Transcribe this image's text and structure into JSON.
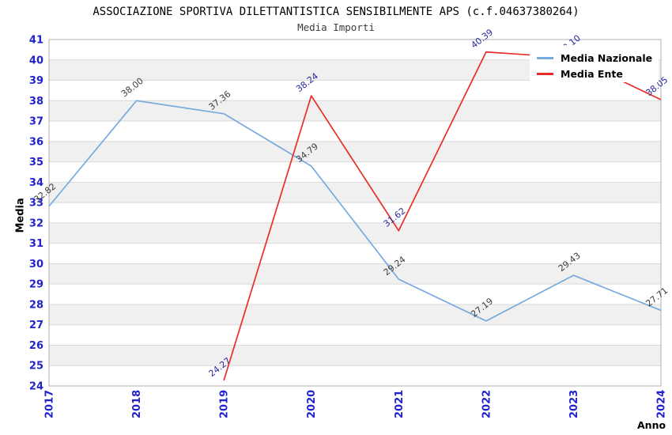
{
  "header": {
    "title": "ASSOCIAZIONE SPORTIVA DILETTANTISTICA SENSIBILMENTE APS (c.f.04637380264)",
    "subtitle": "Media Importi"
  },
  "chart_data": {
    "type": "line",
    "title": "ASSOCIAZIONE SPORTIVA DILETTANTISTICA SENSIBILMENTE APS (c.f.04637380264)",
    "subtitle": "Media Importi",
    "xlabel": "Anno",
    "ylabel": "Media",
    "x_categories": [
      "2017",
      "2018",
      "2019",
      "2020",
      "2021",
      "2022",
      "2023",
      "2024"
    ],
    "ylim": [
      24,
      41
    ],
    "y_tick_step": 1,
    "grid": "horizontal-bands",
    "legend_position": "top-right",
    "series": [
      {
        "name": "Media Nazionale",
        "color": "#76AADF",
        "label_color": "#3C3C3C",
        "x": [
          "2017",
          "2018",
          "2019",
          "2020",
          "2021",
          "2022",
          "2023",
          "2024"
        ],
        "values": [
          32.82,
          38.0,
          37.36,
          34.79,
          29.24,
          27.19,
          29.43,
          27.71
        ],
        "labels": [
          "32.82",
          "38.00",
          "37.36",
          "34.79",
          "29.24",
          "27.19",
          "29.43",
          "27.71"
        ]
      },
      {
        "name": "Media Ente",
        "color": "#E82D28",
        "label_color": "#2A2A9C",
        "x": [
          "2019",
          "2020",
          "2021",
          "2022",
          "2023",
          "2024"
        ],
        "values": [
          24.27,
          38.24,
          31.62,
          40.39,
          40.1,
          38.05
        ],
        "labels": [
          "24.27",
          "38.24",
          "31.62",
          "40.39",
          "40.10",
          "38.05"
        ]
      }
    ],
    "style": {
      "band_fill": "#F0F0F0",
      "gridline_color": "#D9D9D9",
      "border_color": "#B0B0B0",
      "tick_color": "#2222CC",
      "background": "#FFFFFF"
    }
  }
}
